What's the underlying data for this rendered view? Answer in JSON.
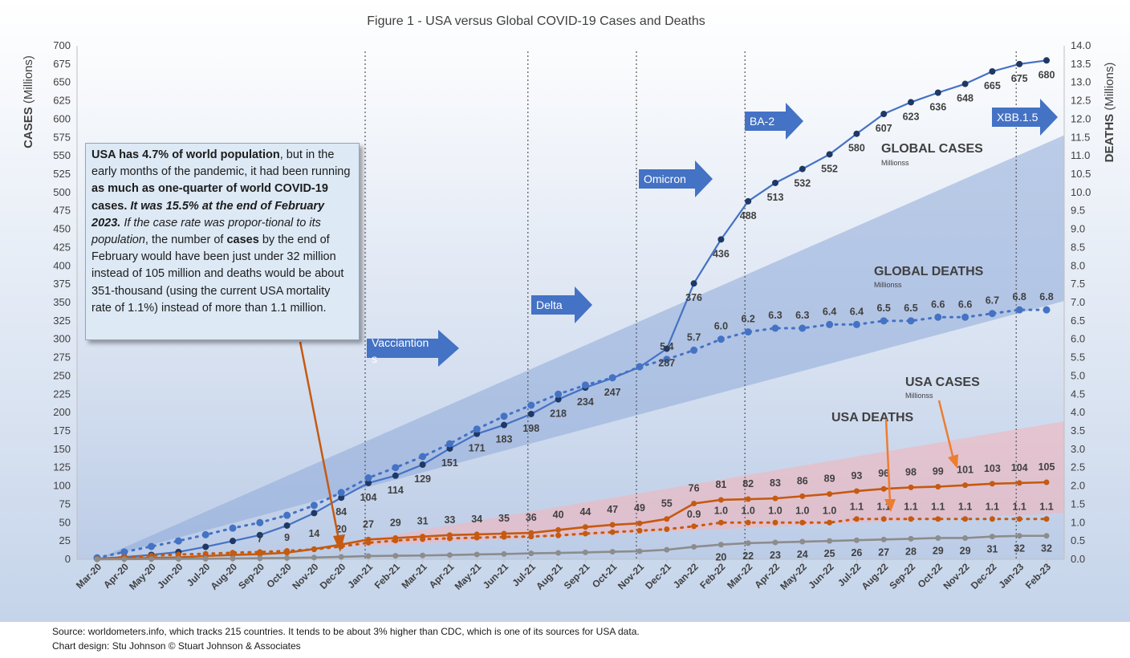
{
  "title": {
    "prefix": "Figure 1 - ",
    "main": "USA versus Global COVID-19 Cases and Deaths"
  },
  "footer": {
    "source": "Source: worldometers.info, which tracks 215 countries. It tends to be about 3% higher than CDC, which is one of its sources for USA data.",
    "design": "Chart design: Stu Johnson  © Stuart Johnson & Associates"
  },
  "callout": {
    "p1": "USA has 4.7% of world population",
    "p2": ", but in the early months of the pandemic, it had been running ",
    "p3": "as much as one-quarter of world COVID-19 cases.",
    "p4": " ",
    "p5": "It was 15.5% at the end of February 2023.",
    "p6": " ",
    "p7": "If the case rate was propor-tional to its population",
    "p8": ", the number of ",
    "p9": "cases",
    "p10": " by the end of February would have been  just under 32 million instead of 105 million and deaths would be about 351-thousand (using the current USA mortality rate of 1.1%) instead of more than 1.1 million."
  },
  "variant_labels": [
    {
      "text": "Vacciantion s",
      "lines": [
        "Vacciantion",
        "s"
      ]
    },
    {
      "text": "Delta",
      "lines": [
        "Delta"
      ]
    },
    {
      "text": "Omicron",
      "lines": [
        "Omicron"
      ]
    },
    {
      "text": "BA-2",
      "lines": [
        "BA-2"
      ]
    },
    {
      "text": "XBB.1.5",
      "lines": [
        "XBB.1.5"
      ]
    }
  ],
  "series_annotations": {
    "global_cases": "GLOBAL CASES",
    "global_cases_unit": "Millionss",
    "global_deaths": "GLOBAL DEATHS",
    "global_deaths_unit": "Millionss",
    "usa_cases": "USA CASES",
    "usa_cases_unit": "Millionss",
    "usa_deaths": "USA DEATHS"
  },
  "colors": {
    "blue": "#4472c4",
    "blue_band": "#8ea9d8",
    "orange": "#c55a11",
    "orange_arrow": "#ed7d31",
    "pink_band": "#f1b6bd",
    "gray": "#8c8c8c",
    "navy_marker": "#1f3864",
    "arrow_fill": "#4472c4",
    "background_top": "#ffffff",
    "background_bottom": "#c5d4ea"
  },
  "chart_data": {
    "type": "line",
    "x": [
      "Mar-20",
      "Apr-20",
      "May-20",
      "Jun-20",
      "Jul-20",
      "Aug-20",
      "Sep-20",
      "Oct-20",
      "Nov-20",
      "Dec-20",
      "Jan-21",
      "Feb-21",
      "Mar-21",
      "Apr-21",
      "May-21",
      "Jun-21",
      "Jul-21",
      "Aug-21",
      "Sep-21",
      "Oct-21",
      "Nov-21",
      "Dec-21",
      "Jan-22",
      "Feb-22",
      "Mar-22",
      "Apr-22",
      "May-22",
      "Jun-22",
      "Jul-22",
      "Aug-22",
      "Sep-22",
      "Oct-22",
      "Nov-22",
      "Dec-22",
      "Jan-23",
      "Feb-23"
    ],
    "ylabel": "CASES (Millions)",
    "y2label": "DEATHS (Millions)",
    "ylim": [
      0,
      700
    ],
    "y2lim": [
      0,
      14
    ],
    "yticks": [
      0,
      25,
      50,
      75,
      100,
      125,
      150,
      175,
      200,
      225,
      250,
      275,
      300,
      325,
      350,
      375,
      400,
      425,
      450,
      475,
      500,
      525,
      550,
      575,
      600,
      625,
      650,
      675,
      700
    ],
    "y2ticks": [
      "0.0",
      "0.5",
      "1.0",
      "1.5",
      "2.0",
      "2.5",
      "3.0",
      "3.5",
      "4.0",
      "4.5",
      "5.0",
      "5.5",
      "6.0",
      "6.5",
      "7.0",
      "7.5",
      "8.0",
      "8.5",
      "9.0",
      "9.5",
      "10.0",
      "10.5",
      "11.0",
      "11.5",
      "12.0",
      "12.5",
      "13.0",
      "13.5",
      "14.0"
    ],
    "vertical_markers": [
      "Jan-21",
      "Jul-21",
      "Nov-21",
      "Mar-22",
      "Jan-23"
    ],
    "grid": false,
    "series": [
      {
        "name": "GLOBAL CASES",
        "axis": "left",
        "style": "solid",
        "values": [
          0.8,
          3,
          6,
          10,
          17,
          25,
          33,
          46,
          63,
          84,
          104,
          114,
          129,
          151,
          171,
          183,
          198,
          218,
          234,
          247,
          262,
          287,
          376,
          436,
          488,
          513,
          532,
          552,
          580,
          607,
          623,
          636,
          648,
          665,
          675,
          680
        ],
        "labels": [
          "",
          "",
          "",
          "",
          "",
          "",
          "",
          "",
          "",
          "84",
          "104",
          "114",
          "129",
          "151",
          "171",
          "183",
          "198",
          "218",
          "234",
          "247",
          "",
          "287",
          "376",
          "436",
          "488",
          "513",
          "532",
          "552",
          "580",
          "607",
          "623",
          "636",
          "648",
          "665",
          "675",
          "680"
        ]
      },
      {
        "name": "GLOBAL DEATHS",
        "axis": "right",
        "style": "dotted",
        "values": [
          0.04,
          0.2,
          0.35,
          0.5,
          0.67,
          0.85,
          1.0,
          1.2,
          1.47,
          1.82,
          2.22,
          2.5,
          2.8,
          3.15,
          3.55,
          3.9,
          4.2,
          4.5,
          4.75,
          4.95,
          5.25,
          5.45,
          5.7,
          6.0,
          6.2,
          6.3,
          6.3,
          6.4,
          6.4,
          6.5,
          6.5,
          6.6,
          6.6,
          6.7,
          6.8,
          6.8
        ],
        "labels": [
          "",
          "",
          "",
          "",
          "",
          "",
          "",
          "",
          "",
          "",
          "",
          "",
          "",
          "",
          "",
          "",
          "",
          "",
          "",
          "",
          "",
          "5.4",
          "5.7",
          "6.0",
          "6.2",
          "6.3",
          "6.3",
          "6.4",
          "6.4",
          "6.5",
          "6.5",
          "6.6",
          "6.6",
          "6.7",
          "6.8",
          "6.8"
        ]
      },
      {
        "name": "USA CASES",
        "axis": "left",
        "style": "solid",
        "values": [
          0.2,
          1.1,
          1.8,
          2.6,
          4.5,
          6,
          7,
          9,
          14,
          20,
          27,
          29,
          31,
          33,
          34,
          35,
          36,
          40,
          44,
          47,
          49,
          55,
          76,
          81,
          82,
          83,
          86,
          89,
          93,
          96,
          98,
          99,
          101,
          103,
          104,
          105
        ],
        "labels": [
          "",
          "",
          "",
          "",
          "",
          "",
          "7",
          "9",
          "14",
          "20",
          "27",
          "29",
          "31",
          "33",
          "34",
          "35",
          "36",
          "40",
          "44",
          "47",
          "49",
          "55",
          "76",
          "81",
          "82",
          "83",
          "86",
          "89",
          "93",
          "96",
          "98",
          "99",
          "101",
          "103",
          "104",
          "105"
        ]
      },
      {
        "name": "USA DEATHS",
        "axis": "right",
        "style": "dotted",
        "values": [
          0.01,
          0.06,
          0.1,
          0.13,
          0.15,
          0.18,
          0.2,
          0.23,
          0.27,
          0.35,
          0.45,
          0.51,
          0.55,
          0.57,
          0.59,
          0.61,
          0.62,
          0.65,
          0.7,
          0.74,
          0.78,
          0.82,
          0.9,
          1.0,
          1.0,
          1.0,
          1.0,
          1.0,
          1.1,
          1.1,
          1.1,
          1.1,
          1.1,
          1.1,
          1.1,
          1.1
        ],
        "labels": [
          "",
          "",
          "",
          "",
          "",
          "",
          "",
          "",
          "",
          "",
          "",
          "",
          "",
          "",
          "",
          "",
          "",
          "",
          "",
          "",
          "",
          "",
          "0.9",
          "1.0",
          "1.0",
          "1.0",
          "1.0",
          "1.0",
          "1.1",
          "1.1",
          "1.1",
          "1.1",
          "1.1",
          "1.1",
          "1.1",
          "1.1"
        ]
      },
      {
        "axis": "left",
        "style": "solid",
        "values": [
          0,
          0.2,
          0.4,
          0.6,
          0.8,
          1.1,
          1.4,
          1.8,
          2.4,
          3.3,
          4.4,
          4.8,
          5.2,
          5.8,
          6.6,
          7.2,
          8.1,
          8.7,
          9.4,
          10.3,
          11,
          13,
          17,
          20,
          22,
          23,
          24,
          25,
          26,
          27,
          28,
          29,
          29,
          31,
          32,
          32
        ],
        "labels": [
          "",
          "",
          "",
          "",
          "",
          "",
          "",
          "",
          "",
          "",
          "",
          "",
          "",
          "",
          "",
          "",
          "",
          "",
          "",
          "",
          "",
          "",
          "",
          "20",
          "22",
          "23",
          "24",
          "25",
          "26",
          "27",
          "28",
          "29",
          "29",
          "31",
          "32",
          "32"
        ]
      }
    ]
  }
}
